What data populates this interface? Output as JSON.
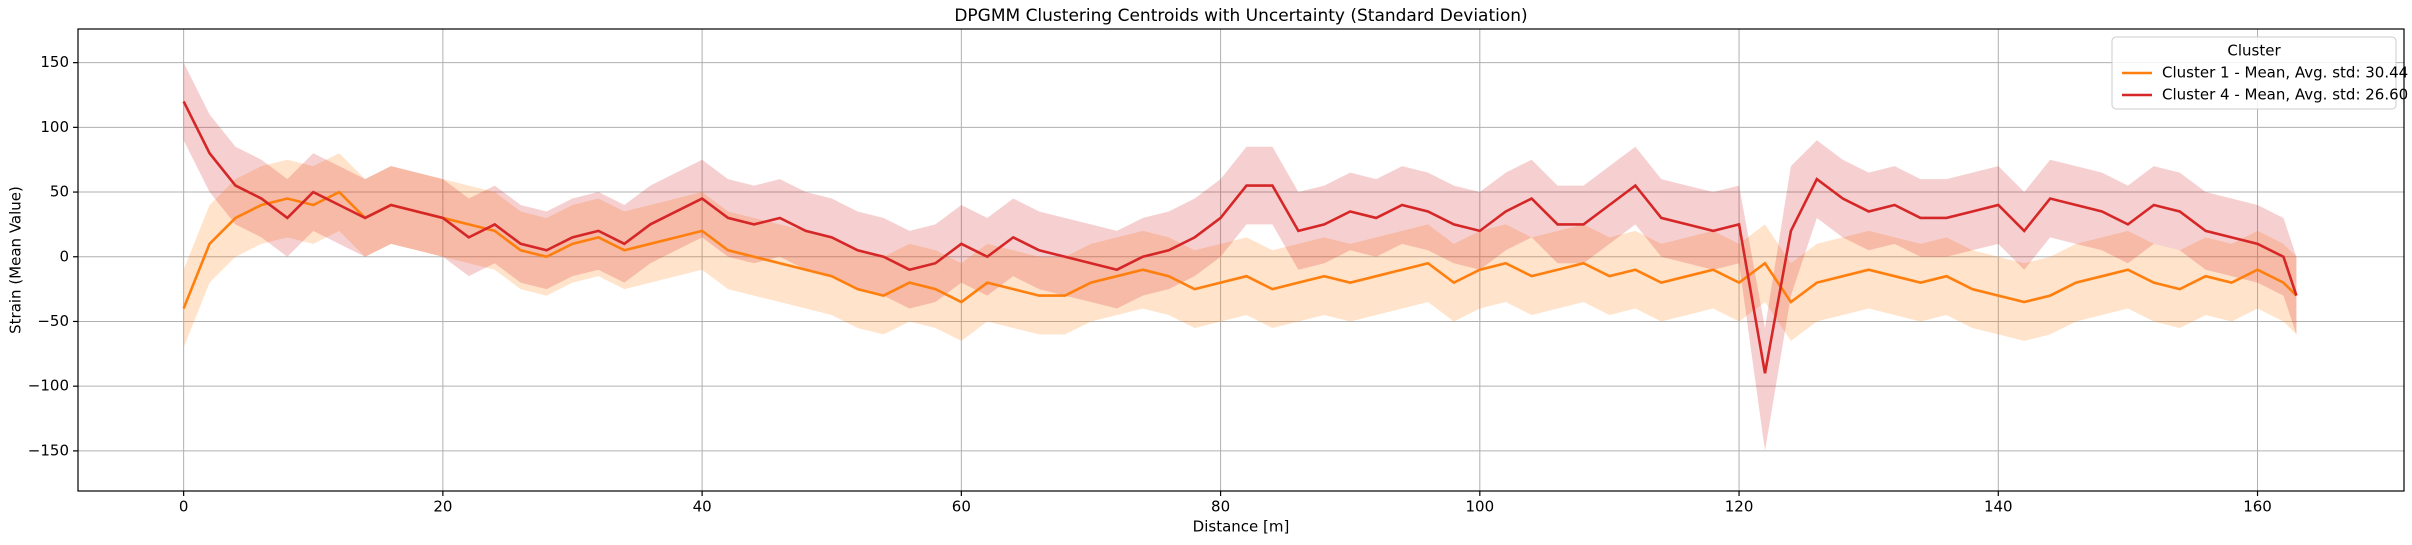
{
  "chart_data": {
    "type": "line",
    "title": "DPGMM Clustering Centroids with Uncertainty (Standard Deviation)",
    "x_label": "Distance [m]",
    "y_label": "Strain (Mean Value)",
    "legend_title": "Cluster",
    "legend_position": "upper right",
    "grid": true,
    "xlim": [
      -8.15,
      171.3
    ],
    "ylim": [
      -181,
      176
    ],
    "xticks": [
      0,
      20,
      40,
      60,
      80,
      100,
      120,
      140,
      160
    ],
    "yticks": [
      {
        "value": -150,
        "label": "−150"
      },
      {
        "value": -100,
        "label": "−100"
      },
      {
        "value": -50,
        "label": "−50"
      },
      0,
      50,
      100,
      150
    ],
    "x": [
      0,
      2,
      4,
      6,
      8,
      10,
      12,
      14,
      16,
      18,
      20,
      22,
      24,
      26,
      28,
      30,
      32,
      34,
      36,
      38,
      40,
      42,
      44,
      46,
      48,
      50,
      52,
      54,
      56,
      58,
      60,
      62,
      64,
      66,
      68,
      70,
      72,
      74,
      76,
      78,
      80,
      82,
      84,
      86,
      88,
      90,
      92,
      94,
      96,
      98,
      100,
      102,
      104,
      106,
      108,
      110,
      112,
      114,
      116,
      118,
      120,
      122,
      124,
      126,
      128,
      130,
      132,
      134,
      136,
      138,
      140,
      142,
      144,
      146,
      148,
      150,
      152,
      154,
      156,
      158,
      160,
      162,
      163
    ],
    "series": [
      {
        "name": "Cluster 1 - Mean, Avg. std: 30.44",
        "color": "#ff7f0e",
        "values": [
          -40,
          10,
          30,
          40,
          45,
          40,
          50,
          30,
          40,
          35,
          30,
          25,
          20,
          5,
          0,
          10,
          15,
          5,
          10,
          15,
          20,
          5,
          0,
          -5,
          -10,
          -15,
          -25,
          -30,
          -20,
          -25,
          -35,
          -20,
          -25,
          -30,
          -30,
          -20,
          -15,
          -10,
          -15,
          -25,
          -20,
          -15,
          -25,
          -20,
          -15,
          -20,
          -15,
          -10,
          -5,
          -20,
          -10,
          -5,
          -15,
          -10,
          -5,
          -15,
          -10,
          -20,
          -15,
          -10,
          -20,
          -5,
          -35,
          -20,
          -15,
          -10,
          -15,
          -20,
          -15,
          -25,
          -30,
          -35,
          -30,
          -20,
          -15,
          -10,
          -20,
          -25,
          -15,
          -20,
          -10,
          -20,
          -30
        ],
        "upper": [
          -10,
          40,
          60,
          70,
          75,
          70,
          80,
          60,
          70,
          65,
          60,
          55,
          50,
          35,
          30,
          40,
          45,
          35,
          40,
          45,
          50,
          35,
          30,
          25,
          20,
          15,
          5,
          0,
          10,
          5,
          -5,
          10,
          5,
          0,
          0,
          10,
          15,
          20,
          15,
          5,
          10,
          15,
          5,
          10,
          15,
          10,
          15,
          20,
          25,
          10,
          20,
          25,
          15,
          20,
          25,
          15,
          20,
          10,
          15,
          20,
          10,
          25,
          -5,
          10,
          15,
          20,
          15,
          10,
          15,
          5,
          0,
          -5,
          0,
          10,
          15,
          20,
          10,
          5,
          15,
          10,
          20,
          10,
          0
        ],
        "lower": [
          -70,
          -20,
          0,
          10,
          15,
          10,
          20,
          0,
          10,
          5,
          0,
          -5,
          -10,
          -25,
          -30,
          -20,
          -15,
          -25,
          -20,
          -15,
          -10,
          -25,
          -30,
          -35,
          -40,
          -45,
          -55,
          -60,
          -50,
          -55,
          -65,
          -50,
          -55,
          -60,
          -60,
          -50,
          -45,
          -40,
          -45,
          -55,
          -50,
          -45,
          -55,
          -50,
          -45,
          -50,
          -45,
          -40,
          -35,
          -50,
          -40,
          -35,
          -45,
          -40,
          -35,
          -45,
          -40,
          -50,
          -45,
          -40,
          -50,
          -35,
          -65,
          -50,
          -45,
          -40,
          -45,
          -50,
          -45,
          -55,
          -60,
          -65,
          -60,
          -50,
          -45,
          -40,
          -50,
          -55,
          -45,
          -50,
          -40,
          -50,
          -60
        ]
      },
      {
        "name": "Cluster 4 - Mean, Avg. std: 26.60",
        "color": "#d62728",
        "values": [
          120,
          80,
          55,
          45,
          30,
          50,
          40,
          30,
          40,
          35,
          30,
          15,
          25,
          10,
          5,
          15,
          20,
          10,
          25,
          35,
          45,
          30,
          25,
          30,
          20,
          15,
          5,
          0,
          -10,
          -5,
          10,
          0,
          15,
          5,
          0,
          -5,
          -10,
          0,
          5,
          15,
          30,
          55,
          55,
          20,
          25,
          35,
          30,
          40,
          35,
          25,
          20,
          35,
          45,
          25,
          25,
          40,
          55,
          30,
          25,
          20,
          25,
          -90,
          20,
          60,
          45,
          35,
          40,
          30,
          30,
          35,
          40,
          20,
          45,
          40,
          35,
          25,
          40,
          35,
          20,
          15,
          10,
          0,
          -30
        ],
        "upper": [
          150,
          110,
          85,
          75,
          60,
          80,
          70,
          60,
          70,
          65,
          60,
          45,
          55,
          40,
          35,
          45,
          50,
          40,
          55,
          65,
          75,
          60,
          55,
          60,
          50,
          45,
          35,
          30,
          20,
          25,
          40,
          30,
          45,
          35,
          30,
          25,
          20,
          30,
          35,
          45,
          60,
          85,
          85,
          50,
          55,
          65,
          60,
          70,
          65,
          55,
          50,
          65,
          75,
          55,
          55,
          70,
          85,
          60,
          55,
          50,
          55,
          -55,
          70,
          90,
          75,
          65,
          70,
          60,
          60,
          65,
          70,
          50,
          75,
          70,
          65,
          55,
          70,
          65,
          50,
          45,
          40,
          30,
          0
        ],
        "lower": [
          90,
          50,
          25,
          15,
          0,
          20,
          10,
          0,
          10,
          5,
          0,
          -15,
          -5,
          -20,
          -25,
          -15,
          -10,
          -20,
          -5,
          5,
          15,
          0,
          -5,
          0,
          -10,
          -15,
          -25,
          -30,
          -40,
          -35,
          -20,
          -30,
          -15,
          -25,
          -30,
          -35,
          -40,
          -30,
          -25,
          -15,
          0,
          25,
          25,
          -10,
          -5,
          5,
          0,
          10,
          5,
          -5,
          -10,
          5,
          15,
          -5,
          -5,
          10,
          25,
          0,
          -5,
          -10,
          -5,
          -150,
          -30,
          30,
          15,
          5,
          10,
          0,
          0,
          5,
          10,
          -10,
          15,
          10,
          5,
          -5,
          10,
          5,
          -10,
          -15,
          -20,
          -30,
          -60
        ]
      }
    ]
  }
}
